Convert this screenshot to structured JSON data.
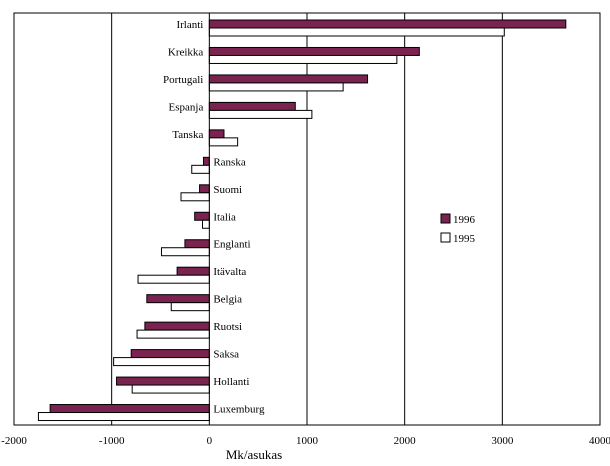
{
  "chart_data": {
    "type": "bar",
    "orientation": "horizontal",
    "categories": [
      "Irlanti",
      "Kreikka",
      "Portugali",
      "Espanja",
      "Tanska",
      "Ranska",
      "Suomi",
      "Italia",
      "Englanti",
      "Itävalta",
      "Belgia",
      "Ruotsi",
      "Saksa",
      "Hollanti",
      "Luxemburg"
    ],
    "series": [
      {
        "name": "1996",
        "color": "#7a2350",
        "values": [
          3650,
          2150,
          1620,
          880,
          150,
          -60,
          -100,
          -150,
          -250,
          -330,
          -640,
          -660,
          -800,
          -950,
          -1630
        ]
      },
      {
        "name": "1995",
        "color": "#ffffff",
        "values": [
          3020,
          1920,
          1370,
          1050,
          290,
          -180,
          -290,
          -70,
          -490,
          -730,
          -390,
          -740,
          -980,
          -790,
          -1750
        ]
      }
    ],
    "xlabel": "Mk/asukas",
    "ylabel": "",
    "xlim": [
      -2000,
      4000
    ],
    "xticks": [
      -2000,
      -1000,
      0,
      1000,
      2000,
      3000,
      4000
    ],
    "grid": "vertical",
    "legend_position": "right"
  }
}
